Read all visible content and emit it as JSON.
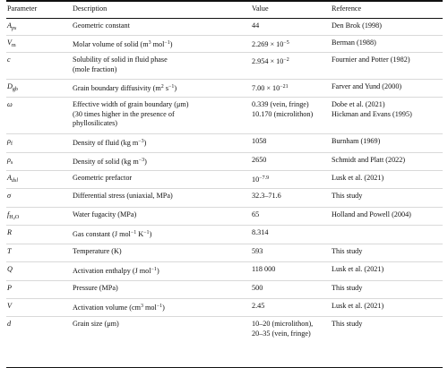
{
  "header": {
    "parameter": "Parameter",
    "description": "Description",
    "value": "Value",
    "reference": "Reference"
  },
  "rows": [
    {
      "sym_base": "A",
      "sym_sub": "ps",
      "desc": "Geometric constant",
      "value": "44",
      "ref": "Den Brok (1998)"
    },
    {
      "sym_base": "V",
      "sym_sub": "m",
      "desc_a": "Molar volume of solid (m",
      "desc_b": "3",
      "desc_c": " mol",
      "desc_d": "−1",
      "desc_e": ")",
      "val_a": "2.269 × 10",
      "val_b": "−5",
      "ref": "Berman (1988)"
    },
    {
      "sym": "c",
      "desc_line1": "Solubility of solid in fluid phase",
      "desc_line2": "(mole fraction)",
      "val_a": "2.954 × 10",
      "val_b": "−2",
      "ref": "Fournier and Potter (1982)"
    },
    {
      "sym_base": "D",
      "sym_sub": "gb",
      "desc_a": "Grain boundary diffusivity (m",
      "desc_b": "2",
      "desc_c": " s",
      "desc_d": "−1",
      "desc_e": ")",
      "val_a": "7.00 × 10",
      "val_b": "−21",
      "ref": "Farver and Yund (2000)"
    },
    {
      "sym": "ω",
      "desc_line1": "Effective width of grain boundary (μm)",
      "desc_line2": "(30 times higher in the presence of",
      "desc_line3": "phyllosilicates)",
      "val_line1": "0.339 (vein, fringe)",
      "val_line2": "10.170 (microlithon)",
      "ref_line1": "Dobe et al. (2021)",
      "ref_line2": "Hickman and Evans (1995)"
    },
    {
      "sym_base": "ρ",
      "sym_sub": "f",
      "desc_a": "Density of fluid (kg m",
      "desc_b": "−3",
      "desc_c": ")",
      "value": "1058",
      "ref": "Burnham (1969)"
    },
    {
      "sym_base": "ρ",
      "sym_sub": "s",
      "desc_a": "Density of solid (kg m",
      "desc_b": "−3",
      "desc_c": ")",
      "value": "2650",
      "ref": "Schmidt and Platt (2022)"
    },
    {
      "sym_base": "A",
      "sym_sub": "dsl",
      "desc": "Geometric prefactor",
      "val_a": "10",
      "val_b": "−7.9",
      "ref": "Lusk et al. (2021)"
    },
    {
      "sym": "σ",
      "desc": "Differential stress (uniaxial, MPa)",
      "value": "32.3–71.6",
      "ref": "This study"
    },
    {
      "sym_base": "f",
      "sym_sub": "H",
      "sym_sub2": "2",
      "sym_sub3": "O",
      "desc": "Water fugacity (MPa)",
      "value": "65",
      "ref": "Holland and Powell (2004)"
    },
    {
      "sym": "R",
      "desc_a": "Gas constant (J mol",
      "desc_b": "−1",
      "desc_c": " K",
      "desc_d": "−1",
      "desc_e": ")",
      "value": "8.314",
      "ref": ""
    },
    {
      "sym": "T",
      "desc": "Temperature (K)",
      "value": "593",
      "ref": "This study"
    },
    {
      "sym": "Q",
      "desc_a": "Activation enthalpy (J mol",
      "desc_b": "−1",
      "desc_c": ")",
      "value": "118 000",
      "ref": "Lusk et al. (2021)"
    },
    {
      "sym": "P",
      "desc": "Pressure (MPa)",
      "value": "500",
      "ref": "This study"
    },
    {
      "sym": "V",
      "desc_a": "Activation volume (cm",
      "desc_b": "3",
      "desc_c": " mol",
      "desc_d": "−1",
      "desc_e": ")",
      "value": "2.45",
      "ref": "Lusk et al. (2021)"
    },
    {
      "sym": "d",
      "desc": "Grain size (μm)",
      "val_line1": "10–20 (microlithon),",
      "val_line2": "20–35 (vein, fringe)",
      "ref": "This study"
    }
  ]
}
